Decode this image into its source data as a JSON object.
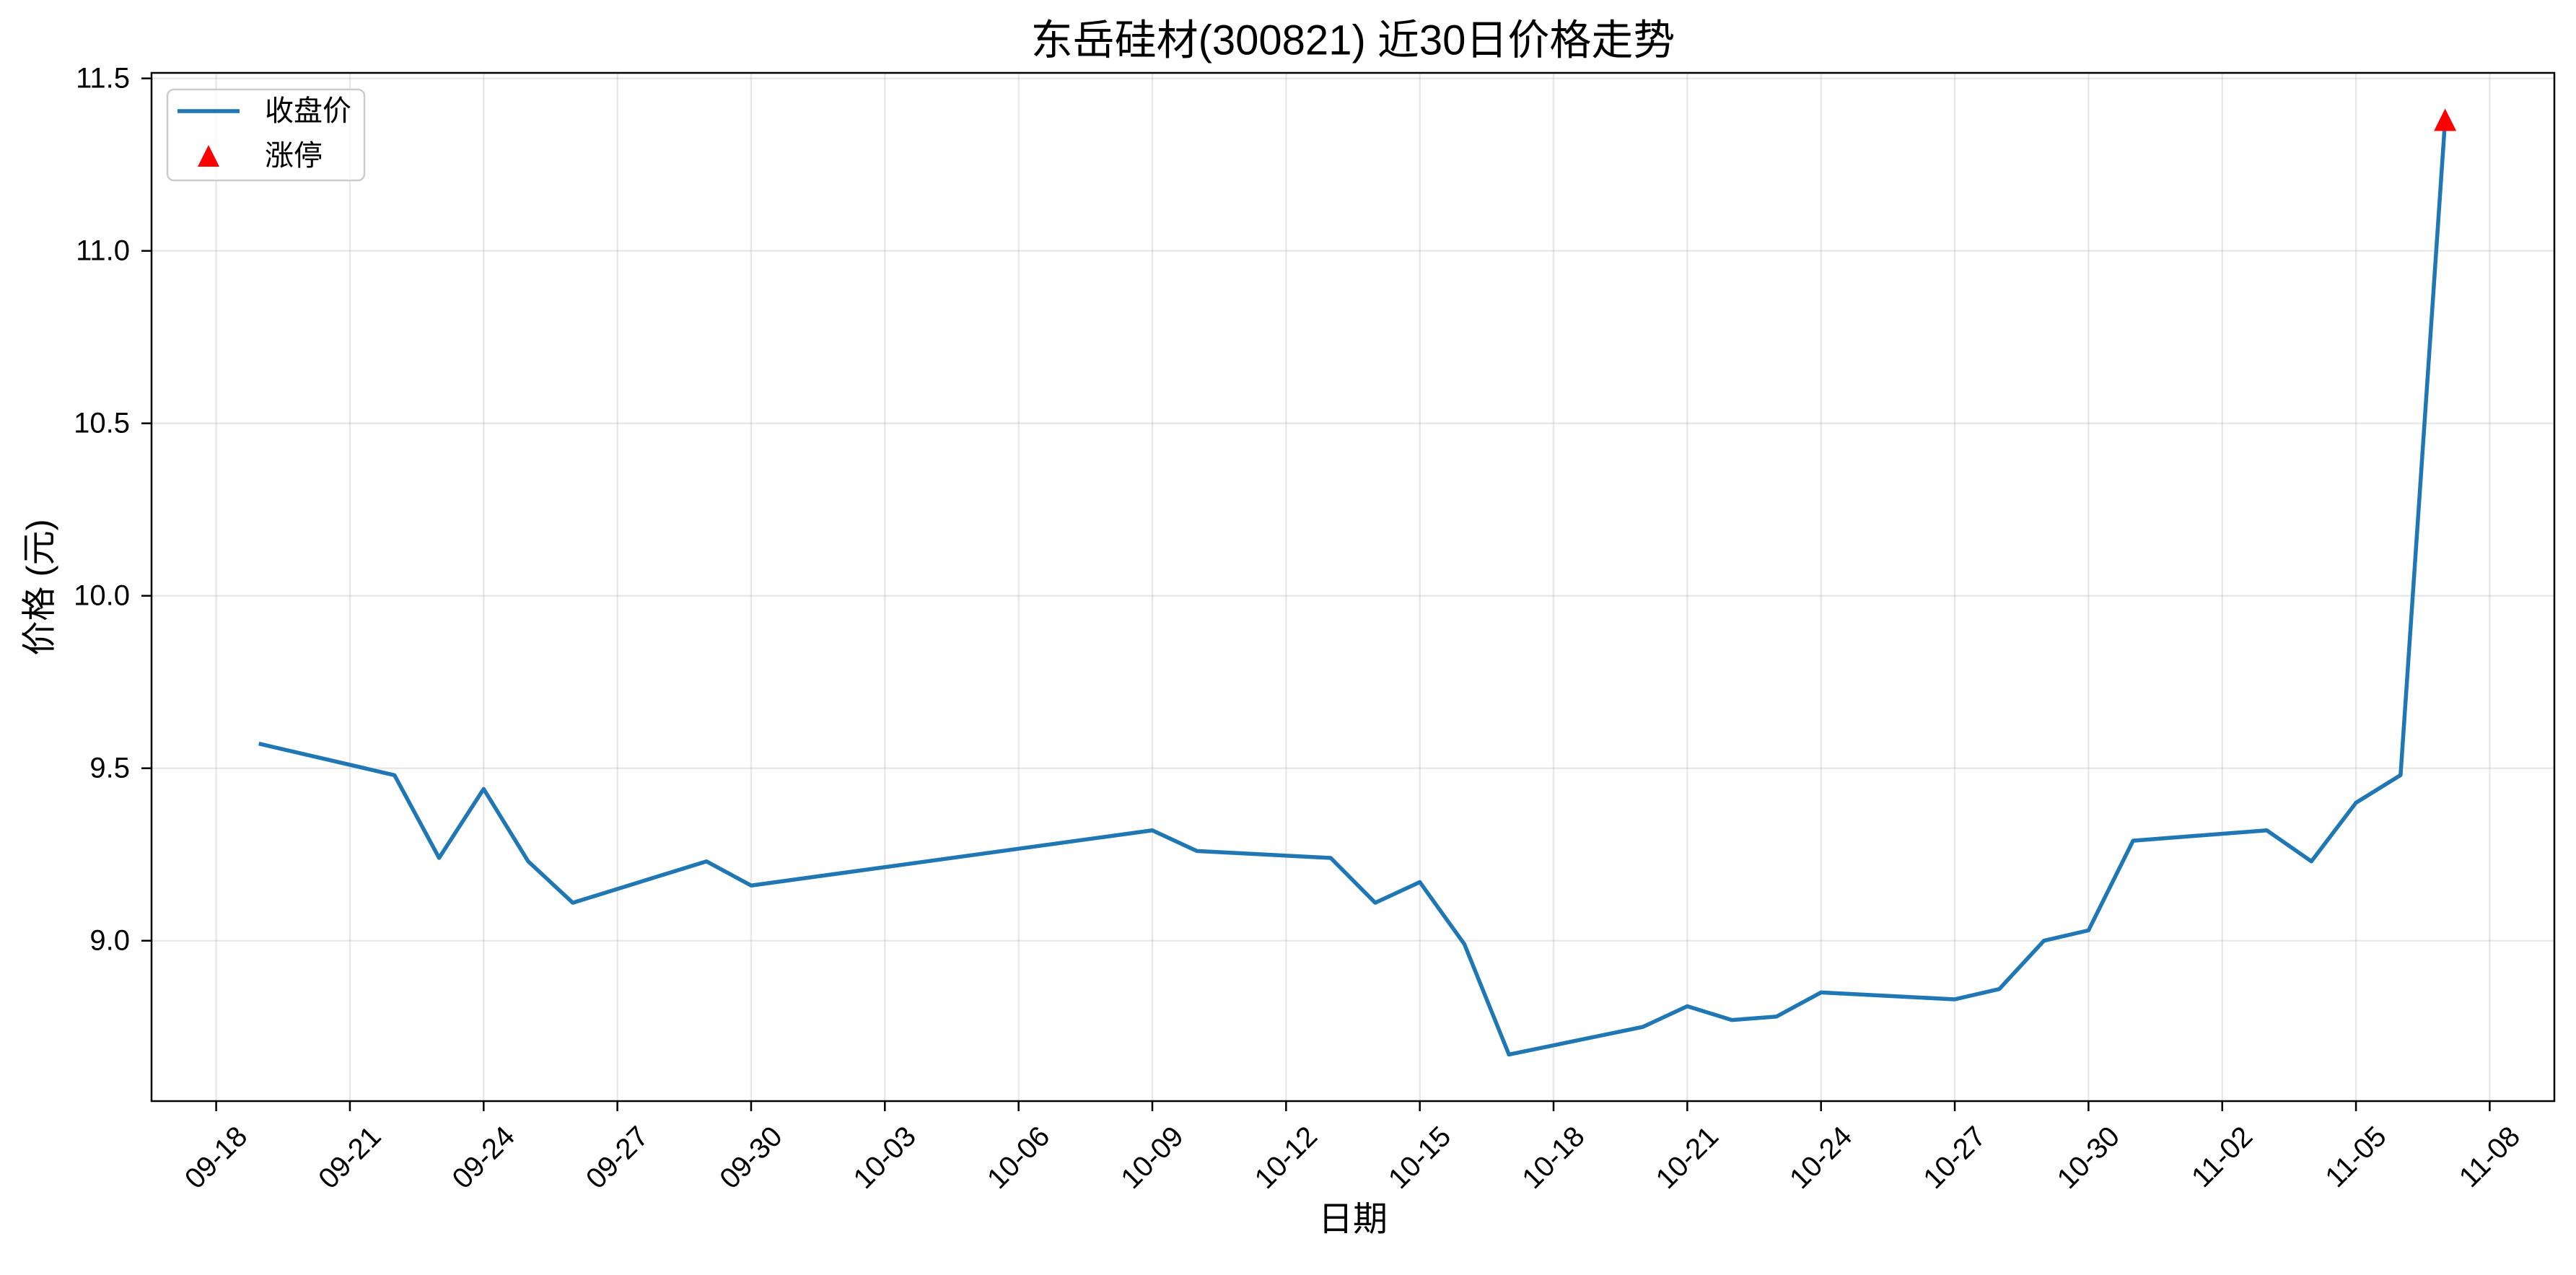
{
  "chart_data": {
    "type": "line",
    "title": "东岳硅材(300821) 近30日价格走势",
    "xlabel": "日期",
    "ylabel": "价格 (元)",
    "x": [
      "09-19",
      "09-22",
      "09-23",
      "09-24",
      "09-25",
      "09-26",
      "09-29",
      "09-30",
      "10-09",
      "10-10",
      "10-13",
      "10-14",
      "10-15",
      "10-16",
      "10-17",
      "10-20",
      "10-21",
      "10-22",
      "10-23",
      "10-24",
      "10-27",
      "10-28",
      "10-29",
      "10-30",
      "10-31",
      "11-03",
      "11-04",
      "11-05",
      "11-06",
      "11-07"
    ],
    "series": [
      {
        "name": "收盘价",
        "color": "#1f77b4",
        "values": [
          9.57,
          9.48,
          9.24,
          9.44,
          9.23,
          9.11,
          9.23,
          9.16,
          9.32,
          9.26,
          9.24,
          9.11,
          9.17,
          8.99,
          8.67,
          8.75,
          8.81,
          8.77,
          8.78,
          8.85,
          8.83,
          8.86,
          9.0,
          9.03,
          9.29,
          9.32,
          9.23,
          9.4,
          9.48,
          11.38
        ]
      }
    ],
    "markers": [
      {
        "name": "涨停",
        "shape": "triangle-up",
        "color": "#ff0000",
        "x": "11-07",
        "y": 11.38
      }
    ],
    "x_ticks": [
      "09-18",
      "09-21",
      "09-24",
      "09-27",
      "09-30",
      "10-03",
      "10-06",
      "10-09",
      "10-12",
      "10-15",
      "10-18",
      "10-21",
      "10-24",
      "10-27",
      "10-30",
      "11-02",
      "11-05",
      "11-08"
    ],
    "y_ticks": [
      9.0,
      9.5,
      10.0,
      10.5,
      11.0,
      11.5
    ],
    "ylim": [
      8.535,
      11.516
    ],
    "grid": true,
    "legend": {
      "placement": "upper left"
    }
  }
}
